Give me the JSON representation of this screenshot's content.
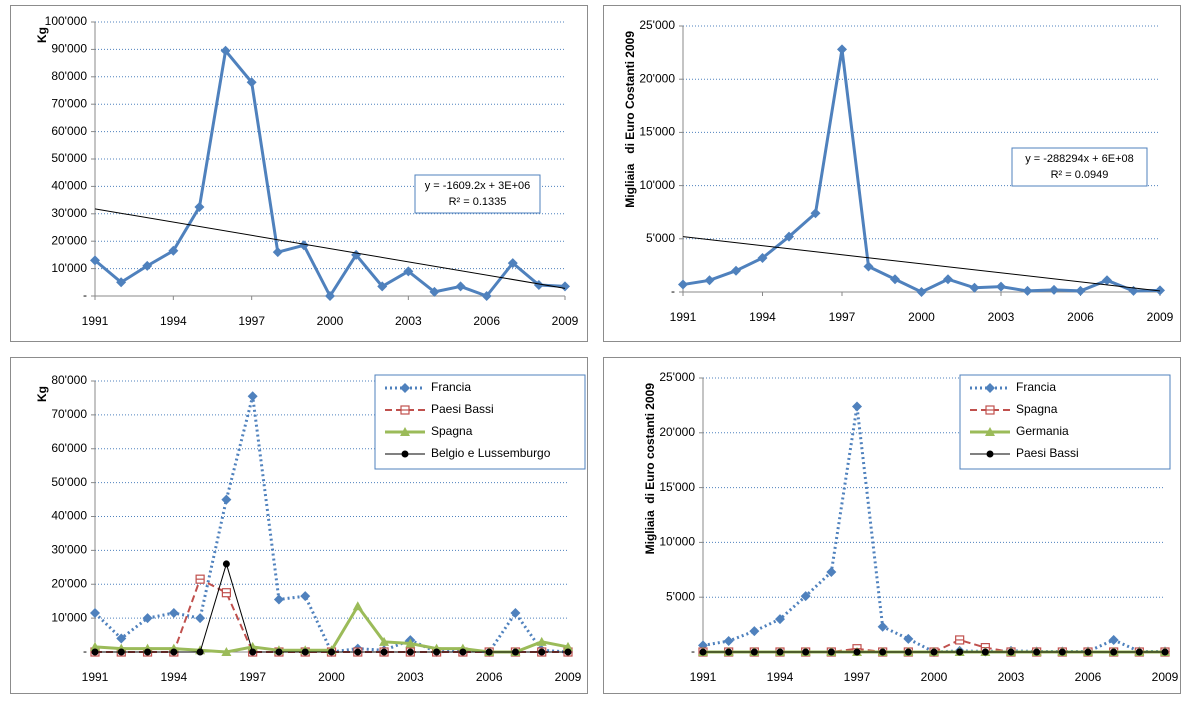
{
  "chart_data": [
    {
      "type": "line",
      "y_label": "Kg",
      "color": "#4f81bd",
      "line_width": 3,
      "marker": "diamond",
      "dash": "solid",
      "x": [
        1991,
        1992,
        1993,
        1994,
        1995,
        1996,
        1997,
        1998,
        1999,
        2000,
        2001,
        2002,
        2003,
        2004,
        2005,
        2006,
        2007,
        2008,
        2009
      ],
      "values": [
        13000,
        5000,
        11000,
        16500,
        32500,
        89500,
        78000,
        16000,
        18500,
        0,
        15000,
        3500,
        9000,
        1500,
        3500,
        0,
        12000,
        4000,
        3500
      ],
      "xlim": [
        1991,
        2009
      ],
      "xticks": [
        1991,
        1994,
        1997,
        2000,
        2003,
        2006,
        2009
      ],
      "ylim": [
        0,
        100000
      ],
      "yticks": [
        {
          "value": 0,
          "label": "-"
        },
        {
          "value": 10000,
          "label": "10'000"
        },
        {
          "value": 20000,
          "label": "20'000"
        },
        {
          "value": 30000,
          "label": "30'000"
        },
        {
          "value": 40000,
          "label": "40'000"
        },
        {
          "value": 50000,
          "label": "50'000"
        },
        {
          "value": 60000,
          "label": "60'000"
        },
        {
          "value": 70000,
          "label": "70'000"
        },
        {
          "value": 80000,
          "label": "80'000"
        },
        {
          "value": 90000,
          "label": "90'000"
        },
        {
          "value": 100000,
          "label": "100'000"
        }
      ],
      "grid": true,
      "trendline": {
        "x": [
          1991,
          2009
        ],
        "values": [
          31800,
          2800
        ],
        "equation": "y = -1609.2x + 3E+06",
        "r2": "R² = 0.1335"
      }
    },
    {
      "type": "line",
      "y_label": "Migliaia   di Euro Costanti 2009",
      "color": "#4f81bd",
      "line_width": 3,
      "marker": "diamond",
      "dash": "solid",
      "x": [
        1991,
        1992,
        1993,
        1994,
        1995,
        1996,
        1997,
        1998,
        1999,
        2000,
        2001,
        2002,
        2003,
        2004,
        2005,
        2006,
        2007,
        2008,
        2009
      ],
      "values": [
        700,
        1100,
        2000,
        3200,
        5200,
        7400,
        22800,
        2400,
        1200,
        0,
        1200,
        400,
        500,
        100,
        200,
        100,
        1100,
        100,
        150
      ],
      "xlim": [
        1991,
        2009
      ],
      "xticks": [
        1991,
        1994,
        1997,
        2000,
        2003,
        2006,
        2009
      ],
      "ylim": [
        0,
        25000
      ],
      "yticks": [
        {
          "value": 0,
          "label": "-"
        },
        {
          "value": 5000,
          "label": "5'000"
        },
        {
          "value": 10000,
          "label": "10'000"
        },
        {
          "value": 15000,
          "label": "15'000"
        },
        {
          "value": 20000,
          "label": "20'000"
        },
        {
          "value": 25000,
          "label": "25'000"
        }
      ],
      "grid": true,
      "trendline": {
        "x": [
          1991,
          2009
        ],
        "values": [
          5200,
          100
        ],
        "equation": "y = -288294x + 6E+08",
        "r2": "R² = 0.0949"
      }
    },
    {
      "type": "line",
      "y_label": "Kg",
      "legend": "top-right",
      "x": [
        1991,
        1992,
        1993,
        1994,
        1995,
        1996,
        1997,
        1998,
        1999,
        2000,
        2001,
        2002,
        2003,
        2004,
        2005,
        2006,
        2007,
        2008,
        2009
      ],
      "series": [
        {
          "name": "Francia",
          "color": "#4f81bd",
          "line_width": 3,
          "marker": "diamond",
          "dash": "dotted",
          "values": [
            11500,
            4000,
            10000,
            11500,
            10000,
            45000,
            75500,
            15500,
            16500,
            0,
            1000,
            500,
            3500,
            0,
            500,
            0,
            11500,
            500,
            0
          ]
        },
        {
          "name": "Paesi Bassi",
          "color": "#c0504d",
          "line_width": 2,
          "marker": "square-open",
          "dash": "dashed",
          "values": [
            0,
            0,
            0,
            0,
            21500,
            17500,
            0,
            0,
            0,
            0,
            0,
            0,
            0,
            0,
            0,
            0,
            0,
            0,
            0
          ]
        },
        {
          "name": "Spagna",
          "color": "#9bbb59",
          "line_width": 3,
          "marker": "triangle",
          "dash": "solid",
          "values": [
            1500,
            1000,
            1000,
            1000,
            500,
            0,
            1500,
            500,
            500,
            500,
            13500,
            3000,
            2500,
            1000,
            1000,
            0,
            0,
            3000,
            1500
          ]
        },
        {
          "name": "Belgio e Lussemburgo",
          "color": "#000000",
          "line_width": 1,
          "marker": "circle",
          "dash": "solid",
          "values": [
            0,
            0,
            0,
            0,
            0,
            26000,
            0,
            0,
            0,
            0,
            0,
            0,
            0,
            0,
            0,
            0,
            0,
            0,
            0
          ]
        }
      ],
      "xlim": [
        1991,
        2009
      ],
      "xticks": [
        1991,
        1994,
        1997,
        2000,
        2003,
        2006,
        2009
      ],
      "ylim": [
        0,
        80000
      ],
      "yticks": [
        {
          "value": 0,
          "label": "-"
        },
        {
          "value": 10000,
          "label": "10'000"
        },
        {
          "value": 20000,
          "label": "20'000"
        },
        {
          "value": 30000,
          "label": "30'000"
        },
        {
          "value": 40000,
          "label": "40'000"
        },
        {
          "value": 50000,
          "label": "50'000"
        },
        {
          "value": 60000,
          "label": "60'000"
        },
        {
          "value": 70000,
          "label": "70'000"
        },
        {
          "value": 80000,
          "label": "80'000"
        }
      ],
      "grid": true
    },
    {
      "type": "line",
      "y_label": "Migliaia  di Euro costanti 2009",
      "legend": "top-right",
      "x": [
        1991,
        1992,
        1993,
        1994,
        1995,
        1996,
        1997,
        1998,
        1999,
        2000,
        2001,
        2002,
        2003,
        2004,
        2005,
        2006,
        2007,
        2008,
        2009
      ],
      "series": [
        {
          "name": "Francia",
          "color": "#4f81bd",
          "line_width": 3,
          "marker": "diamond",
          "dash": "dotted",
          "values": [
            600,
            1000,
            1900,
            3000,
            5100,
            7300,
            22400,
            2300,
            1200,
            0,
            100,
            50,
            100,
            50,
            50,
            50,
            1100,
            50,
            50
          ]
        },
        {
          "name": "Spagna",
          "color": "#c0504d",
          "line_width": 2,
          "marker": "square-open",
          "dash": "dashed",
          "values": [
            0,
            0,
            0,
            0,
            0,
            0,
            300,
            0,
            0,
            0,
            1100,
            400,
            0,
            0,
            0,
            0,
            0,
            0,
            0
          ]
        },
        {
          "name": "Germania",
          "color": "#9bbb59",
          "line_width": 3,
          "marker": "triangle",
          "dash": "solid",
          "values": [
            0,
            0,
            0,
            0,
            0,
            0,
            0,
            0,
            0,
            0,
            0,
            0,
            0,
            0,
            0,
            0,
            0,
            0,
            0
          ]
        },
        {
          "name": "Paesi Bassi",
          "color": "#000000",
          "line_width": 1,
          "marker": "circle",
          "dash": "solid",
          "values": [
            0,
            0,
            0,
            0,
            0,
            0,
            0,
            0,
            0,
            0,
            0,
            0,
            0,
            0,
            0,
            0,
            0,
            0,
            0
          ]
        }
      ],
      "xlim": [
        1991,
        2009
      ],
      "xticks": [
        1991,
        1994,
        1997,
        2000,
        2003,
        2006,
        2009
      ],
      "ylim": [
        0,
        25000
      ],
      "yticks": [
        {
          "value": 0,
          "label": "-"
        },
        {
          "value": 5000,
          "label": "5'000"
        },
        {
          "value": 10000,
          "label": "10'000"
        },
        {
          "value": 15000,
          "label": "15'000"
        },
        {
          "value": 20000,
          "label": "20'000"
        },
        {
          "value": 25000,
          "label": "25'000"
        }
      ],
      "grid": true
    }
  ]
}
